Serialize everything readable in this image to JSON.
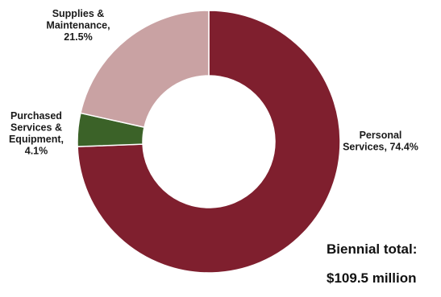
{
  "chart_data": {
    "type": "pie",
    "donut": true,
    "slices": [
      {
        "label_lines": [
          "Personal",
          "Services, 74.4%"
        ],
        "value": 74.4,
        "color": "#7f1f2e"
      },
      {
        "label_lines": [
          "Purchased",
          "Services &",
          "Equipment,",
          "4.1%"
        ],
        "value": 4.1,
        "color": "#3b6228"
      },
      {
        "label_lines": [
          "Supplies &",
          "Maintenance,",
          "21.5%"
        ],
        "value": 21.5,
        "color": "#c9a2a3"
      }
    ],
    "annotation": {
      "label": "Biennial total:",
      "value": "$109.5 million"
    }
  }
}
